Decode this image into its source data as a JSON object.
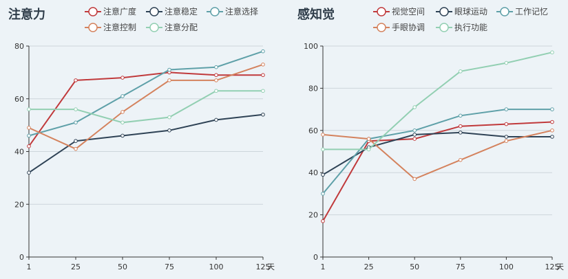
{
  "chart_data": [
    {
      "type": "line",
      "title": "注意力",
      "x": [
        "1",
        "25",
        "50",
        "75",
        "100",
        "125"
      ],
      "x_unit": "天",
      "ylim": [
        0,
        80
      ],
      "yticks": [
        0,
        20,
        40,
        60,
        80
      ],
      "grid": true,
      "legend_position": "top",
      "series": [
        {
          "name": "注意广度",
          "color": "#c0393b",
          "values": [
            42,
            67,
            68,
            70,
            69,
            69
          ]
        },
        {
          "name": "注意稳定",
          "color": "#2e4255",
          "values": [
            32,
            44,
            46,
            48,
            52,
            54
          ]
        },
        {
          "name": "注意选择",
          "color": "#5ea0a8",
          "values": [
            46,
            51,
            61,
            71,
            72,
            78
          ]
        },
        {
          "name": "注意控制",
          "color": "#d4825d",
          "values": [
            49,
            41,
            55,
            67,
            67,
            73
          ]
        },
        {
          "name": "注意分配",
          "color": "#92cfb2",
          "values": [
            56,
            56,
            51,
            53,
            63,
            63
          ]
        }
      ]
    },
    {
      "type": "line",
      "title": "感知觉",
      "x": [
        "1",
        "25",
        "50",
        "75",
        "100",
        "125"
      ],
      "x_unit": "天",
      "ylim": [
        0,
        100
      ],
      "yticks": [
        0,
        20,
        40,
        60,
        80,
        100
      ],
      "grid": true,
      "legend_position": "top",
      "series": [
        {
          "name": "视觉空间",
          "color": "#c0393b",
          "values": [
            17,
            55,
            56,
            62,
            63,
            64
          ]
        },
        {
          "name": "眼球运动",
          "color": "#2e4255",
          "values": [
            39,
            52,
            58,
            59,
            57,
            57
          ]
        },
        {
          "name": "工作记忆",
          "color": "#5ea0a8",
          "values": [
            30,
            56,
            60,
            67,
            70,
            70
          ]
        },
        {
          "name": "手眼协调",
          "color": "#d4825d",
          "values": [
            58,
            56,
            37,
            46,
            55,
            60
          ]
        },
        {
          "name": "执行功能",
          "color": "#92cfb2",
          "values": [
            51,
            51,
            71,
            88,
            92,
            97
          ]
        }
      ]
    }
  ]
}
